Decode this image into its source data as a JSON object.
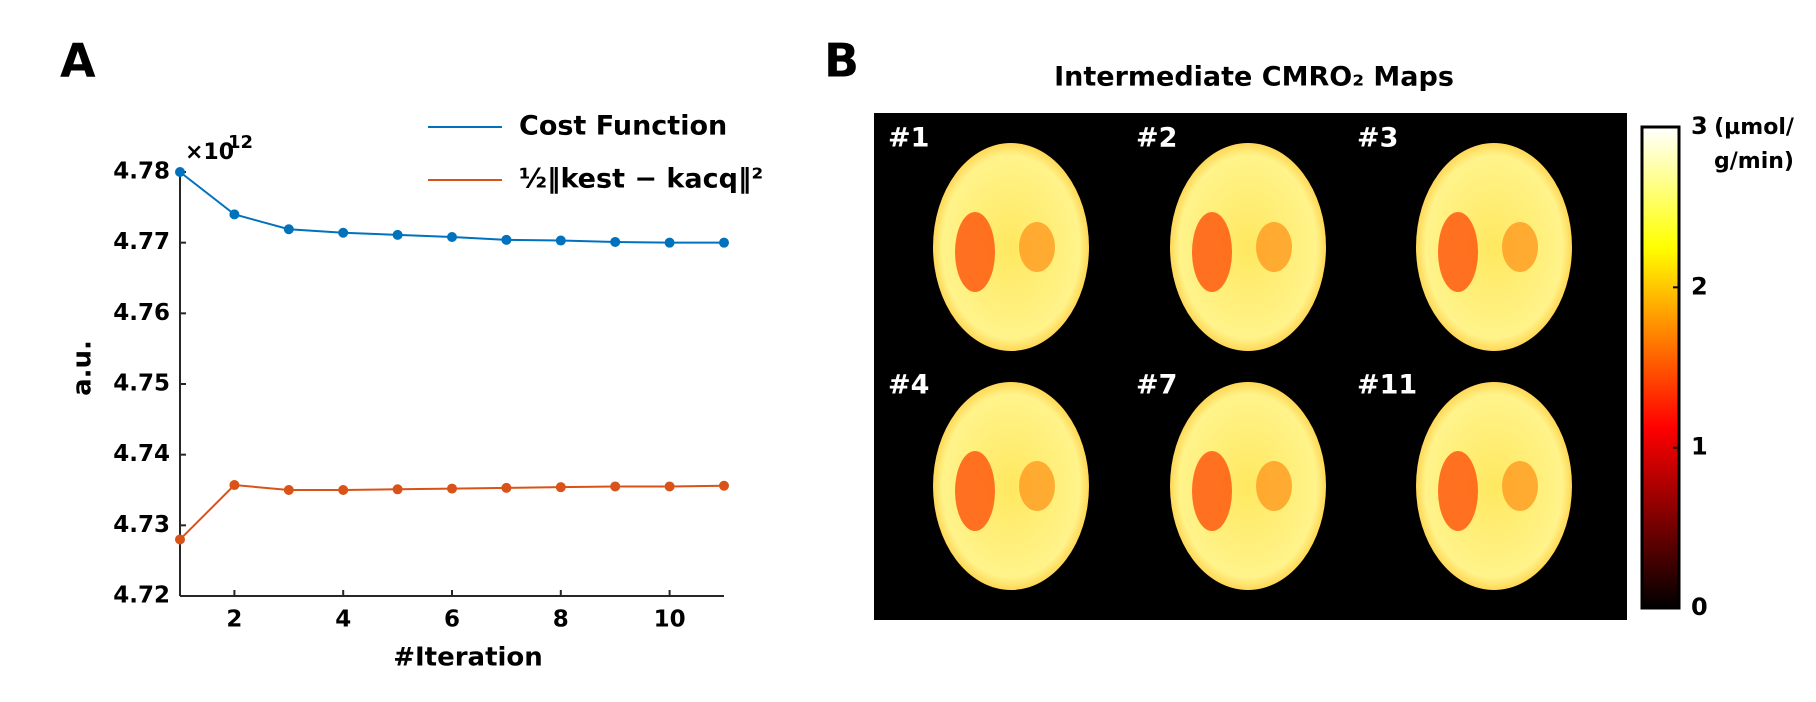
{
  "chart_data": [
    {
      "type": "line",
      "panel_label": "A",
      "xlabel": "#Iteration",
      "ylabel": "a.u.",
      "offset_text": {
        "base": "×10",
        "power": "12"
      },
      "x": [
        1,
        2,
        3,
        4,
        5,
        6,
        7,
        8,
        9,
        10,
        11
      ],
      "xlim": [
        1,
        11
      ],
      "xticks": [
        2,
        4,
        6,
        8,
        10
      ],
      "ylim": [
        4.72,
        4.78
      ],
      "yticks": [
        4.72,
        4.73,
        4.74,
        4.75,
        4.76,
        4.77,
        4.78
      ],
      "legend": "upper right",
      "series": [
        {
          "name": "Cost Function",
          "color": "#0072bd",
          "values": [
            4.78,
            4.774,
            4.7719,
            4.7714,
            4.7711,
            4.7708,
            4.7704,
            4.7703,
            4.7701,
            4.77,
            4.77
          ]
        },
        {
          "name": "½‖kest − kacq‖²",
          "color": "#d95319",
          "values": [
            4.728,
            4.7357,
            4.735,
            4.735,
            4.7351,
            4.7352,
            4.7353,
            4.7354,
            4.7355,
            4.7355,
            4.7356
          ]
        }
      ]
    },
    {
      "type": "heatmap",
      "panel_label": "B",
      "title": "Intermediate CMRO₂ Maps",
      "maps": [
        "#1",
        "#2",
        "#3",
        "#4",
        "#7",
        "#11"
      ],
      "colormap": "hot",
      "clim": [
        0,
        3
      ],
      "cticks": [
        0,
        1,
        2,
        3
      ],
      "colorbar_label": [
        "(µmol/",
        "g/min)"
      ]
    }
  ]
}
